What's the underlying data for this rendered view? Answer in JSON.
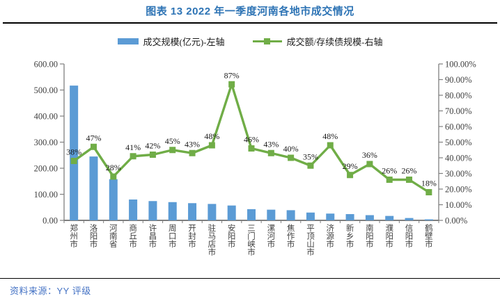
{
  "header": {
    "title": "图表 13 2022 年一季度河南各地市成交情况",
    "title_color": "#2E74B5"
  },
  "legend": {
    "items": [
      {
        "label": "成交规模(亿元)-左轴",
        "marker": "bar",
        "color": "#5B9BD5"
      },
      {
        "label": "成交额/存续债规模-右轴",
        "marker": "line",
        "color": "#70AD47"
      }
    ]
  },
  "footer": {
    "source": "资料来源：YY 评级",
    "source_color": "#4472C4"
  },
  "chart_data": {
    "type": "bar+line combo",
    "title": "图表 13 2022 年一季度河南各地市成交情况",
    "categories": [
      "郑州市",
      "洛阳市",
      "河南省",
      "商丘市",
      "许昌市",
      "周口市",
      "开封市",
      "驻马店市",
      "安阳市",
      "三门峡市",
      "漯河市",
      "焦作市",
      "平顶山市",
      "济源市",
      "新乡市",
      "南阳市",
      "濮阳市",
      "信阳市",
      "鹤壁市"
    ],
    "series": [
      {
        "name": "成交规模(亿元)-左轴",
        "type": "bar",
        "axis": "left",
        "color": "#5B9BD5",
        "values": [
          517,
          245,
          158,
          80,
          74,
          70,
          66,
          63,
          57,
          43,
          41,
          39,
          30,
          26,
          24,
          20,
          17,
          9,
          4
        ]
      },
      {
        "name": "成交额/存续债规模-右轴",
        "type": "line",
        "axis": "right",
        "color": "#70AD47",
        "values": [
          38,
          47,
          28,
          41,
          42,
          45,
          43,
          48,
          87,
          46,
          43,
          40,
          35,
          48,
          29,
          36,
          26,
          26,
          18
        ],
        "data_labels": [
          "38%",
          "47%",
          "28%",
          "41%",
          "42%",
          "45%",
          "43%",
          "48%",
          "87%",
          "46%",
          "43%",
          "40%",
          "35%",
          "48%",
          "29%",
          "36%",
          "26%",
          "26%",
          "18%"
        ]
      }
    ],
    "left_axis": {
      "min": 0,
      "max": 600,
      "tick_labels": [
        "0.00",
        "100.00",
        "200.00",
        "300.00",
        "400.00",
        "500.00",
        "600.00"
      ]
    },
    "right_axis": {
      "min": 0,
      "max": 100,
      "tick_labels": [
        "0.00%",
        "10.00%",
        "20.00%",
        "30.00%",
        "40.00%",
        "50.00%",
        "60.00%",
        "70.00%",
        "80.00%",
        "90.00%",
        "100.00%"
      ]
    },
    "grid": "off",
    "legend_position": "top-center",
    "axis_color": "#7f7f7f",
    "tick_label_color": "#404040",
    "data_label_color": "#1a1a1a"
  }
}
